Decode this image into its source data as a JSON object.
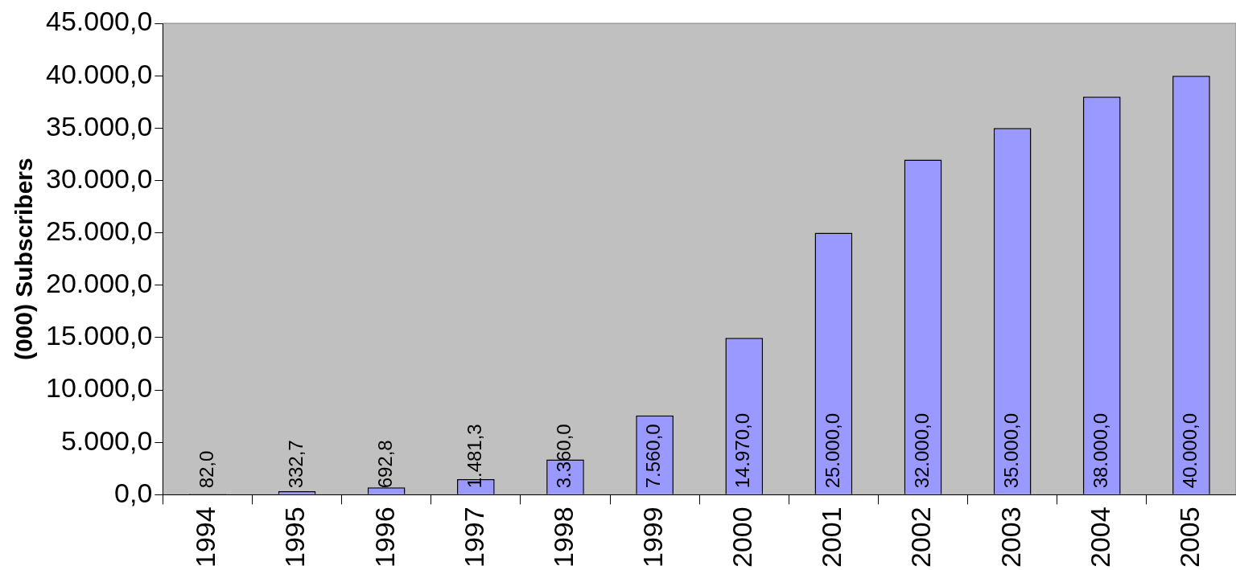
{
  "chart_data": {
    "type": "bar",
    "ylabel": "(000) Subscribers",
    "categories": [
      "1994",
      "1995",
      "1996",
      "1997",
      "1998",
      "1999",
      "2000",
      "2001",
      "2002",
      "2003",
      "2004",
      "2005"
    ],
    "values": [
      82,
      332.7,
      692.8,
      1481.3,
      3360,
      7560,
      14970,
      25000,
      32000,
      35000,
      38000,
      40000
    ],
    "color": "#9999ff",
    "value_labels": [
      "82,0",
      "332,7",
      "692,8",
      "1.481,3",
      "3.360,0",
      "7.560,0",
      "14.970,0",
      "25.000,0",
      "32.000,0",
      "35.000,0",
      "38.000,0",
      "40.000,0"
    ],
    "ylim": [
      0,
      45000
    ],
    "yticks": [
      {
        "value": 0,
        "label": "0,0"
      },
      {
        "value": 5000,
        "label": "5.000,0"
      },
      {
        "value": 10000,
        "label": "10.000,0"
      },
      {
        "value": 15000,
        "label": "15.000,0"
      },
      {
        "value": 20000,
        "label": "20.000,0"
      },
      {
        "value": 25000,
        "label": "25.000,0"
      },
      {
        "value": 30000,
        "label": "30.000,0"
      },
      {
        "value": 35000,
        "label": "35.000,0"
      },
      {
        "value": 40000,
        "label": "40.000,0"
      },
      {
        "value": 45000,
        "label": "45.000,0"
      }
    ],
    "legend": false
  }
}
